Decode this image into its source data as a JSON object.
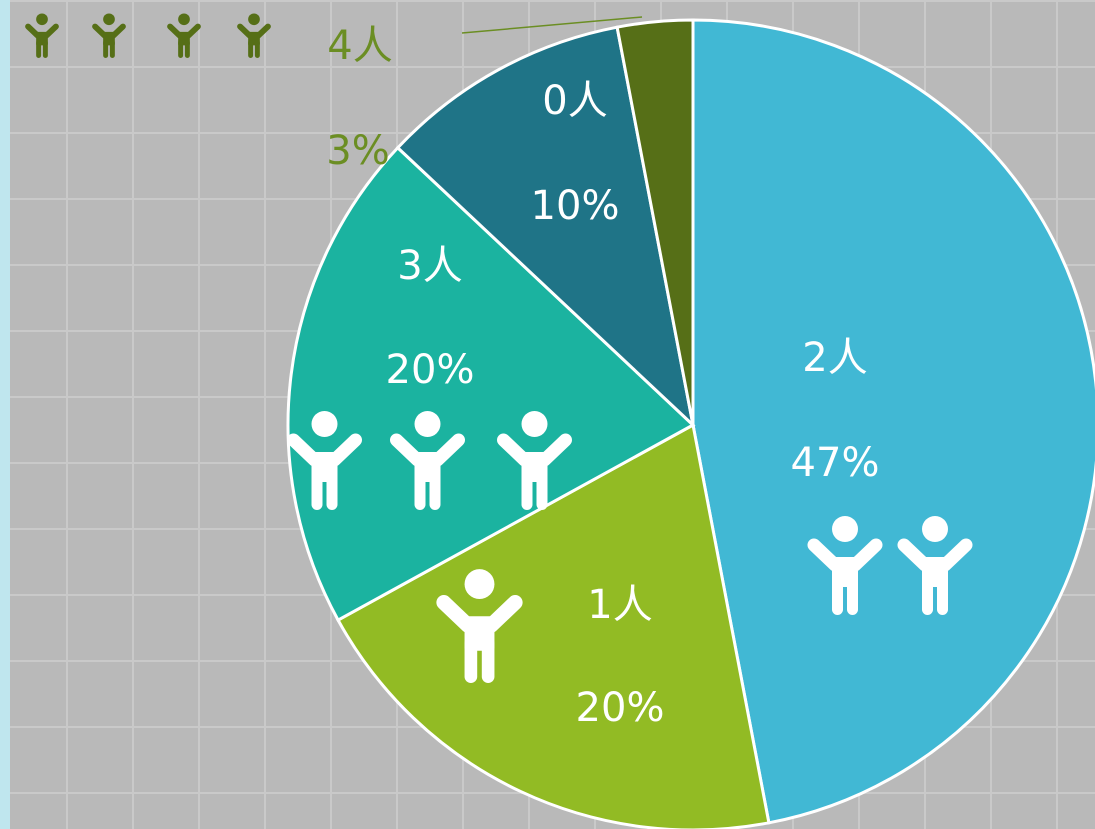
{
  "chart_data": {
    "type": "pie",
    "categories": [
      "2人",
      "1人",
      "3人",
      "0人",
      "4人"
    ],
    "values": [
      47,
      20,
      20,
      10,
      3
    ],
    "value_labels": [
      "47%",
      "20%",
      "20%",
      "10%",
      "3%"
    ],
    "colors": [
      "#41b8d4",
      "#92bb24",
      "#1bb3a0",
      "#1f7487",
      "#566f17"
    ]
  }
}
